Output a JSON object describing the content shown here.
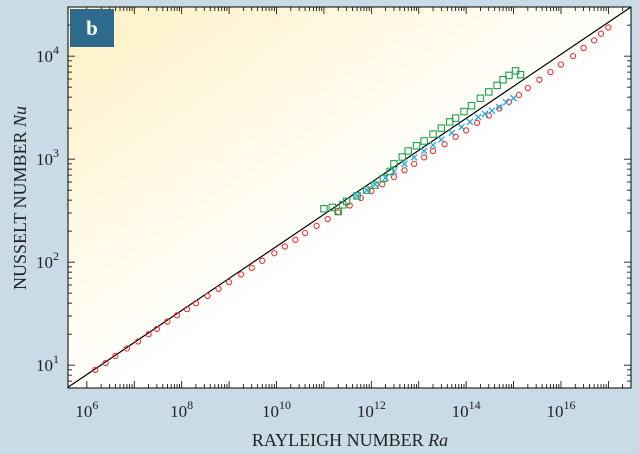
{
  "panel_label": "b",
  "chart_data": {
    "type": "scatter",
    "xscale": "log",
    "yscale": "log",
    "xlabel": "RAYLEIGH NUMBER",
    "xlabel_symbol": "Ra",
    "ylabel": "NUSSELT NUMBER",
    "ylabel_symbol": "Nu",
    "xlim": [
      400000.0,
      3e+17
    ],
    "ylim": [
      6,
      30000
    ],
    "x_ticks": [
      {
        "value": 1000000.0,
        "base": "10",
        "exp": "6"
      },
      {
        "value": 100000000.0,
        "base": "10",
        "exp": "8"
      },
      {
        "value": 10000000000.0,
        "base": "10",
        "exp": "10"
      },
      {
        "value": 1000000000000.0,
        "base": "10",
        "exp": "12"
      },
      {
        "value": 100000000000000.0,
        "base": "10",
        "exp": "14"
      },
      {
        "value": 1e+16,
        "base": "10",
        "exp": "16"
      }
    ],
    "y_ticks": [
      {
        "value": 10,
        "base": "10",
        "exp": "1"
      },
      {
        "value": 100,
        "base": "10",
        "exp": "2"
      },
      {
        "value": 1000,
        "base": "10",
        "exp": "3"
      },
      {
        "value": 10000,
        "base": "10",
        "exp": "4"
      }
    ],
    "grid": false,
    "legend": "none",
    "background_gradient": {
      "from": "#fff1c4",
      "to": "#ffffff"
    },
    "reference_line": {
      "color": "#000000",
      "points": [
        [
          400000.0,
          6.1
        ],
        [
          3e+17,
          30000
        ]
      ]
    },
    "series": [
      {
        "marker": "circle",
        "color": "#e8333a",
        "points": [
          [
            1500000.0,
            9
          ],
          [
            2500000.0,
            10.5
          ],
          [
            4000000.0,
            12.3
          ],
          [
            7000000.0,
            14.5
          ],
          [
            12000000.0,
            17
          ],
          [
            20000000.0,
            20
          ],
          [
            30000000.0,
            22.5
          ],
          [
            50000000.0,
            26.5
          ],
          [
            80000000.0,
            30.5
          ],
          [
            130000000.0,
            35
          ],
          [
            200000000.0,
            40
          ],
          [
            350000000.0,
            47
          ],
          [
            600000000.0,
            55
          ],
          [
            1000000000.0,
            64
          ],
          [
            1800000000.0,
            76
          ],
          [
            3000000000.0,
            88
          ],
          [
            5000000000.0,
            103
          ],
          [
            9000000000.0,
            122
          ],
          [
            15000000000.0,
            142
          ],
          [
            25000000000.0,
            165
          ],
          [
            40000000000.0,
            192
          ],
          [
            70000000000.0,
            225
          ],
          [
            120000000000.0,
            262
          ],
          [
            200000000000.0,
            305
          ],
          [
            350000000000.0,
            355
          ],
          [
            600000000000.0,
            420
          ],
          [
            1000000000000.0,
            490
          ],
          [
            1700000000000.0,
            570
          ],
          [
            3000000000000.0,
            670
          ],
          [
            5000000000000.0,
            780
          ],
          [
            8000000000000.0,
            900
          ],
          [
            13000000000000.0,
            1040
          ],
          [
            20000000000000.0,
            1200
          ],
          [
            35000000000000.0,
            1400
          ],
          [
            60000000000000.0,
            1650
          ],
          [
            100000000000000.0,
            1900
          ],
          [
            170000000000000.0,
            2250
          ],
          [
            300000000000000.0,
            2650
          ],
          [
            500000000000000.0,
            3100
          ],
          [
            800000000000000.0,
            3600
          ],
          [
            1300000000000000.0,
            4200
          ],
          [
            2000000000000000.0,
            4900
          ],
          [
            3500000000000000.0,
            5900
          ],
          [
            6000000000000000.0,
            7000
          ],
          [
            1e+16,
            8300
          ],
          [
            1.8e+16,
            10000
          ],
          [
            3e+16,
            12000
          ],
          [
            5e+16,
            14200
          ],
          [
            7e+16,
            16500
          ],
          [
            1e+17,
            19000
          ]
        ]
      },
      {
        "marker": "square",
        "color": "#1fa04a",
        "points": [
          [
            100000000000.0,
            330
          ],
          [
            150000000000.0,
            340
          ],
          [
            200000000000.0,
            310
          ],
          [
            250000000000.0,
            360
          ],
          [
            300000000000.0,
            390
          ],
          [
            500000000000.0,
            440
          ],
          [
            800000000000.0,
            500
          ],
          [
            1200000000000.0,
            560
          ],
          [
            1800000000000.0,
            650
          ],
          [
            2500000000000.0,
            760
          ],
          [
            3000000000000.0,
            900
          ],
          [
            4500000000000.0,
            1050
          ],
          [
            6000000000000.0,
            1200
          ],
          [
            9000000000000.0,
            1350
          ],
          [
            13000000000000.0,
            1500
          ],
          [
            20000000000000.0,
            1750
          ],
          [
            30000000000000.0,
            2000
          ],
          [
            45000000000000.0,
            2300
          ],
          [
            60000000000000.0,
            2500
          ],
          [
            90000000000000.0,
            2900
          ],
          [
            130000000000000.0,
            3300
          ],
          [
            200000000000000.0,
            3900
          ],
          [
            300000000000000.0,
            4500
          ],
          [
            450000000000000.0,
            5200
          ],
          [
            600000000000000.0,
            5900
          ],
          [
            800000000000000.0,
            6500
          ],
          [
            1100000000000000.0,
            7200
          ],
          [
            1400000000000000.0,
            6600
          ]
        ]
      },
      {
        "marker": "cross",
        "color": "#2aa7e0",
        "points": [
          [
            500000000000.0,
            440
          ],
          [
            800000000000.0,
            500
          ],
          [
            1200000000000.0,
            570
          ],
          [
            2000000000000.0,
            660
          ],
          [
            3000000000000.0,
            760
          ],
          [
            5000000000000.0,
            900
          ],
          [
            8000000000000.0,
            1040
          ],
          [
            13000000000000.0,
            1200
          ],
          [
            20000000000000.0,
            1370
          ],
          [
            30000000000000.0,
            1550
          ],
          [
            50000000000000.0,
            1800
          ],
          [
            80000000000000.0,
            2050
          ],
          [
            120000000000000.0,
            2300
          ],
          [
            180000000000000.0,
            2550
          ],
          [
            250000000000000.0,
            2750
          ],
          [
            350000000000000.0,
            2950
          ],
          [
            500000000000000.0,
            3200
          ],
          [
            700000000000000.0,
            3550
          ],
          [
            1000000000000000.0,
            3900
          ]
        ]
      }
    ]
  }
}
